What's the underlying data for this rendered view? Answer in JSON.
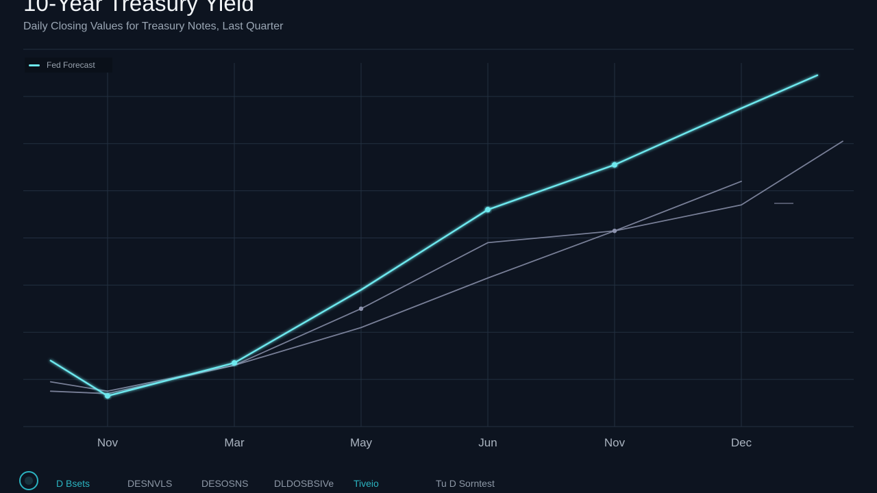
{
  "header": {
    "title": "10-Year Treasury Yield",
    "subtitle": "Daily Closing Values for Treasury Notes, Last Quarter"
  },
  "legend": {
    "label": "Fed Forecast",
    "color": "#6ee9ef"
  },
  "footer": {
    "items": [
      "D Bsets",
      "DESNVLS",
      "DESOSNS",
      "DLDOSBSIVe",
      "Tiveio",
      "Tu D Sorntest"
    ]
  },
  "colors": {
    "background": "#0d1420",
    "grid": "#233041",
    "primary_series": "#6ee9ef",
    "secondary_series": "#8c92ad"
  },
  "chart_data": {
    "type": "line",
    "title": "10-Year Treasury Yield",
    "xlabel": "",
    "ylabel": "",
    "categories": [
      "Nov",
      "Mar",
      "May",
      "Jun",
      "Nov",
      "Dec"
    ],
    "tick_labels": [
      "Nov",
      "Mar",
      "May",
      "Jun",
      "Nov",
      "Dec"
    ],
    "ylim": [
      0,
      8
    ],
    "grid": true,
    "legend_position": "top-left",
    "series": [
      {
        "name": "Fed Forecast",
        "color": "#6ee9ef",
        "x": [
          -0.45,
          0,
          1,
          2,
          3,
          4,
          5,
          5.6
        ],
        "values": [
          1.4,
          0.65,
          1.35,
          2.9,
          4.6,
          5.55,
          6.75,
          7.45
        ],
        "marker_indices": [
          1,
          2,
          4,
          5
        ]
      },
      {
        "name": "",
        "color": "#8c92ad",
        "x": [
          -0.45,
          0,
          1,
          2,
          3,
          4,
          5,
          5.8
        ],
        "values": [
          0.95,
          0.75,
          1.3,
          2.1,
          3.15,
          4.15,
          4.7,
          6.05
        ],
        "marker_indices": [
          5
        ]
      },
      {
        "name": "",
        "color": "#8c92ad",
        "x": [
          -0.45,
          0,
          1,
          2,
          3,
          4,
          5
        ],
        "values": [
          0.75,
          0.7,
          1.3,
          2.5,
          3.9,
          4.15,
          5.2
        ],
        "marker_indices": [
          3,
          5
        ]
      }
    ]
  }
}
